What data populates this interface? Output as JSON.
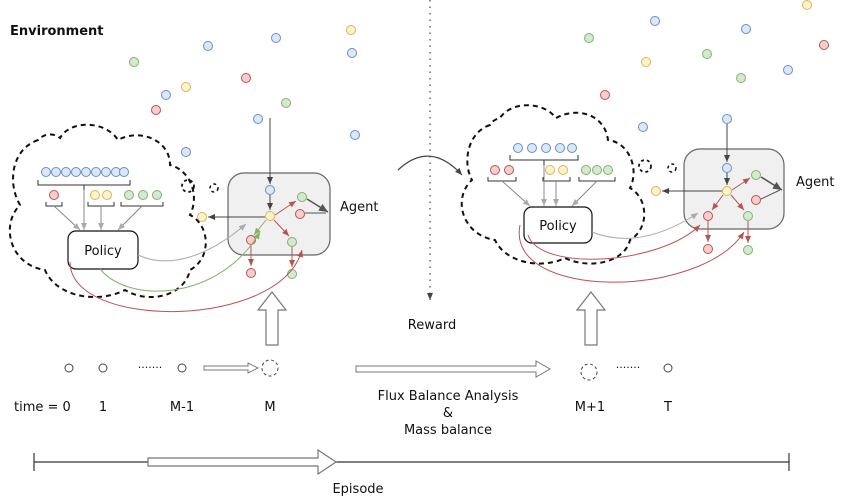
{
  "labels": {
    "environment": "Environment",
    "agent_left": "Agent",
    "agent_right": "Agent",
    "policy_left": "Policy",
    "policy_right": "Policy",
    "reward": "Reward",
    "fba_line1": "Flux Balance Analysis",
    "fba_line2": "&",
    "fba_line3": "Mass balance",
    "episode": "Episode"
  },
  "timeline": {
    "t_prefix": "time = 0",
    "t1": "1",
    "t_m_minus_1": "M-1",
    "t_m": "M",
    "t_m_plus_1": "M+1",
    "t_T": "T",
    "dots_left": "·······",
    "dots_right": "·······"
  },
  "colors": {
    "blue_fill": "#dae8fc",
    "blue_stroke": "#6c8ebf",
    "green_fill": "#d5e8d4",
    "green_stroke": "#82b366",
    "yellow_fill": "#fff2cc",
    "yellow_stroke": "#d6b656",
    "red_fill": "#f8cecc",
    "red_stroke": "#b85450",
    "agent_box_fill": "#f0f0f0",
    "agent_box_stroke": "#666666",
    "red_curve": "#b85450",
    "green_curve": "#82b366",
    "gray_curve": "#aaaaaa"
  }
}
